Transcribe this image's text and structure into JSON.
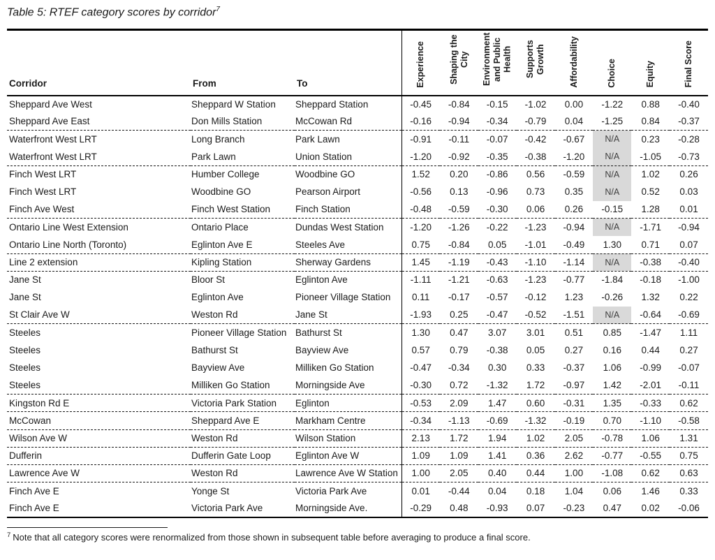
{
  "title": {
    "text": "Table 5: RTEF category scores by corridor",
    "superscript": "7"
  },
  "footnote": {
    "superscript": "7",
    "text": "Note that all category scores were renormalized from those shown in subsequent table before averaging to produce a final score."
  },
  "table": {
    "na_label": "N/A",
    "colors": {
      "na_background": "#d9d9d9",
      "na_text": "#404040",
      "text": "#1a1a1a",
      "border": "#000000"
    },
    "text_columns": [
      "Corridor",
      "From",
      "To"
    ],
    "score_columns": [
      "Experience",
      "Shaping the City",
      "Environment and Public Health",
      "Supports Growth",
      "Affordability",
      "Choice",
      "Equity",
      "Final Score"
    ],
    "rows": [
      {
        "corridor": "Sheppard Ave West",
        "from": "Sheppard W Station",
        "to": "Sheppard Station",
        "scores": [
          "-0.45",
          "-0.84",
          "-0.15",
          "-1.02",
          "0.00",
          "-1.22",
          "0.88",
          "-0.40"
        ],
        "group_start": false
      },
      {
        "corridor": "Sheppard Ave East",
        "from": "Don Mills Station",
        "to": "McCowan Rd",
        "scores": [
          "-0.16",
          "-0.94",
          "-0.34",
          "-0.79",
          "0.04",
          "-1.25",
          "0.84",
          "-0.37"
        ],
        "group_start": false
      },
      {
        "corridor": "Waterfront West LRT",
        "from": "Long Branch",
        "to": "Park Lawn",
        "scores": [
          "-0.91",
          "-0.11",
          "-0.07",
          "-0.42",
          "-0.67",
          "N/A",
          "0.23",
          "-0.28"
        ],
        "group_start": true
      },
      {
        "corridor": "Waterfront West LRT",
        "from": "Park Lawn",
        "to": "Union Station",
        "scores": [
          "-1.20",
          "-0.92",
          "-0.35",
          "-0.38",
          "-1.20",
          "N/A",
          "-1.05",
          "-0.73"
        ],
        "group_start": false
      },
      {
        "corridor": "Finch West LRT",
        "from": "Humber College",
        "to": "Woodbine GO",
        "scores": [
          "1.52",
          "0.20",
          "-0.86",
          "0.56",
          "-0.59",
          "N/A",
          "1.02",
          "0.26"
        ],
        "group_start": true
      },
      {
        "corridor": "Finch West LRT",
        "from": "Woodbine GO",
        "to": "Pearson Airport",
        "scores": [
          "-0.56",
          "0.13",
          "-0.96",
          "0.73",
          "0.35",
          "N/A",
          "0.52",
          "0.03"
        ],
        "group_start": false
      },
      {
        "corridor": "Finch Ave West",
        "from": "Finch West Station",
        "to": "Finch Station",
        "scores": [
          "-0.48",
          "-0.59",
          "-0.30",
          "0.06",
          "0.26",
          "-0.15",
          "1.28",
          "0.01"
        ],
        "group_start": false
      },
      {
        "corridor": "Ontario Line West Extension",
        "from": "Ontario Place",
        "to": "Dundas West Station",
        "scores": [
          "-1.20",
          "-1.26",
          "-0.22",
          "-1.23",
          "-0.94",
          "N/A",
          "-1.71",
          "-0.94"
        ],
        "group_start": true
      },
      {
        "corridor": "Ontario Line North (Toronto)",
        "from": "Eglinton Ave E",
        "to": "Steeles Ave",
        "scores": [
          "0.75",
          "-0.84",
          "0.05",
          "-1.01",
          "-0.49",
          "1.30",
          "0.71",
          "0.07"
        ],
        "group_start": false
      },
      {
        "corridor": "Line 2 extension",
        "from": "Kipling Station",
        "to": "Sherway Gardens",
        "scores": [
          "1.45",
          "-1.19",
          "-0.43",
          "-1.10",
          "-1.14",
          "N/A",
          "-0.38",
          "-0.40"
        ],
        "group_start": true
      },
      {
        "corridor": "Jane St",
        "from": "Bloor St",
        "to": "Eglinton Ave",
        "scores": [
          "-1.11",
          "-1.21",
          "-0.63",
          "-1.23",
          "-0.77",
          "-1.84",
          "-0.18",
          "-1.00"
        ],
        "group_start": true
      },
      {
        "corridor": "Jane St",
        "from": "Eglinton Ave",
        "to": "Pioneer Village Station",
        "scores": [
          "0.11",
          "-0.17",
          "-0.57",
          "-0.12",
          "1.23",
          "-0.26",
          "1.32",
          "0.22"
        ],
        "group_start": false
      },
      {
        "corridor": "St Clair Ave W",
        "from": "Weston Rd",
        "to": "Jane St",
        "scores": [
          "-1.93",
          "0.25",
          "-0.47",
          "-0.52",
          "-1.51",
          "N/A",
          "-0.64",
          "-0.69"
        ],
        "group_start": false
      },
      {
        "corridor": "Steeles",
        "from": "Pioneer Village Station",
        "to": "Bathurst St",
        "scores": [
          "1.30",
          "0.47",
          "3.07",
          "3.01",
          "0.51",
          "0.85",
          "-1.47",
          "1.11"
        ],
        "group_start": true
      },
      {
        "corridor": "Steeles",
        "from": "Bathurst St",
        "to": "Bayview Ave",
        "scores": [
          "0.57",
          "0.79",
          "-0.38",
          "0.05",
          "0.27",
          "0.16",
          "0.44",
          "0.27"
        ],
        "group_start": false
      },
      {
        "corridor": "Steeles",
        "from": "Bayview Ave",
        "to": "Milliken Go Station",
        "scores": [
          "-0.47",
          "-0.34",
          "0.30",
          "0.33",
          "-0.37",
          "1.06",
          "-0.99",
          "-0.07"
        ],
        "group_start": false
      },
      {
        "corridor": "Steeles",
        "from": "Milliken Go Station",
        "to": "Morningside Ave",
        "scores": [
          "-0.30",
          "0.72",
          "-1.32",
          "1.72",
          "-0.97",
          "1.42",
          "-2.01",
          "-0.11"
        ],
        "group_start": false
      },
      {
        "corridor": "Kingston Rd E",
        "from": "Victoria Park Station",
        "to": "Eglinton",
        "scores": [
          "-0.53",
          "2.09",
          "1.47",
          "0.60",
          "-0.31",
          "1.35",
          "-0.33",
          "0.62"
        ],
        "group_start": true
      },
      {
        "corridor": "McCowan",
        "from": "Sheppard Ave E",
        "to": "Markham Centre",
        "scores": [
          "-0.34",
          "-1.13",
          "-0.69",
          "-1.32",
          "-0.19",
          "0.70",
          "-1.10",
          "-0.58"
        ],
        "group_start": true
      },
      {
        "corridor": "Wilson Ave W",
        "from": "Weston Rd",
        "to": "Wilson Station",
        "scores": [
          "2.13",
          "1.72",
          "1.94",
          "1.02",
          "2.05",
          "-0.78",
          "1.06",
          "1.31"
        ],
        "group_start": true
      },
      {
        "corridor": "Dufferin",
        "from": "Dufferin Gate Loop",
        "to": "Eglinton Ave W",
        "scores": [
          "1.09",
          "1.09",
          "1.41",
          "0.36",
          "2.62",
          "-0.77",
          "-0.55",
          "0.75"
        ],
        "group_start": true
      },
      {
        "corridor": "Lawrence Ave W",
        "from": "Weston Rd",
        "to": "Lawrence Ave W Station",
        "scores": [
          "1.00",
          "2.05",
          "0.40",
          "0.44",
          "1.00",
          "-1.08",
          "0.62",
          "0.63"
        ],
        "group_start": true
      },
      {
        "corridor": "Finch Ave E",
        "from": "Yonge St",
        "to": "Victoria Park Ave",
        "scores": [
          "0.01",
          "-0.44",
          "0.04",
          "0.18",
          "1.04",
          "0.06",
          "1.46",
          "0.33"
        ],
        "group_start": true
      },
      {
        "corridor": "Finch Ave E",
        "from": "Victoria Park Ave",
        "to": "Morningside Ave.",
        "scores": [
          "-0.29",
          "0.48",
          "-0.93",
          "0.07",
          "-0.23",
          "0.47",
          "0.02",
          "-0.06"
        ],
        "group_start": false
      }
    ]
  }
}
